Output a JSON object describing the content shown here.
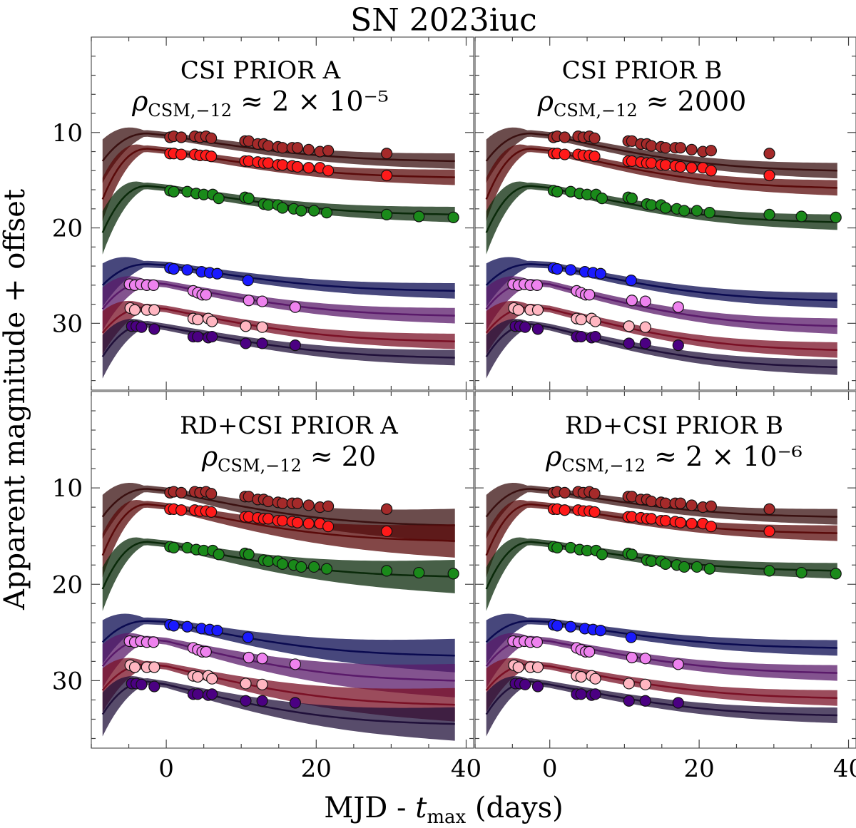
{
  "figure": {
    "title": "SN 2023iuc",
    "xlabel": "MJD - t_max (days)",
    "xlabel_parts": {
      "main": "MJD - ",
      "italic": "t",
      "sub": "max",
      "tail": " (days)"
    },
    "ylabel": "Apparent magnitude + offset"
  },
  "chart_data": [
    {
      "type": "line",
      "panel": "top-left",
      "label": "CSI PRIOR A",
      "rho_prefix": "ρ",
      "rho_sub": "CSM,−12",
      "rho_value": "≈ 2 × 10⁻⁵",
      "xlim": [
        -10,
        41
      ],
      "ylim": [
        37,
        0
      ],
      "xticks": [
        0,
        20,
        40
      ],
      "yticks": [
        10,
        20,
        30
      ],
      "tail": [
        13.0,
        14.7,
        18.6,
        26.6,
        29.2,
        31.9,
        33.6
      ]
    },
    {
      "type": "line",
      "panel": "top-right",
      "label": "CSI PRIOR B",
      "rho_prefix": "ρ",
      "rho_sub": "CSM,−12",
      "rho_value": "≈ 2000",
      "xlim": [
        -10,
        41
      ],
      "ylim": [
        37,
        0
      ],
      "xticks": [
        0,
        20,
        40
      ],
      "yticks": [
        10,
        20,
        30
      ],
      "tail": [
        14.0,
        15.8,
        19.4,
        27.6,
        30.3,
        32.8,
        34.6
      ]
    },
    {
      "type": "line",
      "panel": "bottom-left",
      "label": "RD+CSI PRIOR A",
      "rho_prefix": "ρ",
      "rho_sub": "CSM,−12",
      "rho_value": "≈ 20",
      "xlim": [
        -10,
        41
      ],
      "ylim": [
        37,
        0
      ],
      "xticks": [
        0,
        20,
        40
      ],
      "yticks": [
        10,
        20,
        30
      ],
      "tail": [
        13.9,
        15.5,
        19.2,
        27.4,
        30.0,
        32.5,
        34.5
      ]
    },
    {
      "type": "line",
      "panel": "bottom-right",
      "label": "RD+CSI PRIOR B",
      "rho_prefix": "ρ",
      "rho_sub": "CSM,−12",
      "rho_value": "≈ 2 × 10⁻⁶",
      "xlim": [
        -10,
        41
      ],
      "ylim": [
        37,
        0
      ],
      "xticks": [
        0,
        20,
        40
      ],
      "yticks": [
        10,
        20,
        30
      ],
      "tail": [
        13.0,
        14.7,
        18.6,
        26.6,
        29.2,
        31.8,
        33.6
      ]
    }
  ],
  "bands": [
    {
      "name": "band-1",
      "color": "#a52a2a",
      "line": "#3a1010",
      "start": 13.0,
      "peak": 10.1,
      "at0": 10.3,
      "points": [
        [
          0.5,
          10.5
        ],
        [
          1.0,
          10.4
        ],
        [
          2.0,
          10.5
        ],
        [
          3.8,
          10.4
        ],
        [
          4.5,
          10.5
        ],
        [
          5.3,
          10.4
        ],
        [
          6.0,
          10.6
        ],
        [
          10.5,
          10.9
        ],
        [
          11.0,
          10.9
        ],
        [
          12.2,
          11.2
        ],
        [
          13.0,
          11.2
        ],
        [
          13.6,
          11.4
        ],
        [
          14.9,
          11.5
        ],
        [
          15.5,
          11.6
        ],
        [
          16.8,
          11.6
        ],
        [
          17.5,
          11.6
        ],
        [
          19.0,
          11.8
        ],
        [
          20.5,
          12.0
        ],
        [
          21.6,
          11.9
        ],
        [
          29.4,
          12.2
        ]
      ]
    },
    {
      "name": "band-2",
      "color": "#ff1a1a",
      "line": "#5a0a0a",
      "start": 17.0,
      "peak": 11.7,
      "at0": 11.9,
      "points": [
        [
          0.5,
          12.2
        ],
        [
          1.0,
          12.2
        ],
        [
          2.0,
          12.3
        ],
        [
          3.8,
          12.3
        ],
        [
          4.5,
          12.4
        ],
        [
          5.3,
          12.4
        ],
        [
          6.0,
          12.5
        ],
        [
          10.5,
          13.0
        ],
        [
          11.0,
          13.0
        ],
        [
          12.2,
          13.1
        ],
        [
          13.0,
          13.2
        ],
        [
          13.6,
          13.2
        ],
        [
          14.9,
          13.4
        ],
        [
          15.5,
          13.4
        ],
        [
          16.8,
          13.5
        ],
        [
          17.5,
          13.6
        ],
        [
          19.0,
          13.7
        ],
        [
          20.5,
          13.7
        ],
        [
          21.6,
          14.0
        ],
        [
          29.4,
          14.5
        ]
      ]
    },
    {
      "name": "band-3",
      "color": "#1a8a1a",
      "line": "#0a2a0a",
      "start": 20.5,
      "peak": 15.6,
      "at0": 15.8,
      "points": [
        [
          0.5,
          16.1
        ],
        [
          1.0,
          16.2
        ],
        [
          2.8,
          16.2
        ],
        [
          4.0,
          16.4
        ],
        [
          5.0,
          16.5
        ],
        [
          6.2,
          16.5
        ],
        [
          7.0,
          16.9
        ],
        [
          10.5,
          16.8
        ],
        [
          11.0,
          16.9
        ],
        [
          13.0,
          17.5
        ],
        [
          13.6,
          17.6
        ],
        [
          14.9,
          17.6
        ],
        [
          15.5,
          17.9
        ],
        [
          17.0,
          18.0
        ],
        [
          18.0,
          18.2
        ],
        [
          19.7,
          18.2
        ],
        [
          21.4,
          18.4
        ],
        [
          29.4,
          18.6
        ],
        [
          33.7,
          18.8
        ],
        [
          38.3,
          18.9
        ]
      ]
    },
    {
      "name": "band-4",
      "color": "#1a1aff",
      "line": "#0a0a50",
      "start": 26.0,
      "peak": 23.8,
      "at0": 23.9,
      "points": [
        [
          0.5,
          24.2
        ],
        [
          1.0,
          24.3
        ],
        [
          2.8,
          24.4
        ],
        [
          4.7,
          24.6
        ],
        [
          5.8,
          24.7
        ],
        [
          6.8,
          24.8
        ],
        [
          10.9,
          25.5
        ]
      ]
    },
    {
      "name": "band-5",
      "color": "#ee82ee",
      "line": "#5a1a6a",
      "start": 28.5,
      "peak": 25.7,
      "at0": 25.9,
      "points": [
        [
          -4.9,
          25.9
        ],
        [
          -4.2,
          26.0
        ],
        [
          -3.4,
          25.9
        ],
        [
          -2.6,
          26.0
        ],
        [
          -1.7,
          26.0
        ],
        [
          3.6,
          26.6
        ],
        [
          4.2,
          26.8
        ],
        [
          4.8,
          27.0
        ],
        [
          5.3,
          27.0
        ],
        [
          11.0,
          27.6
        ],
        [
          12.8,
          27.7
        ],
        [
          17.2,
          28.3
        ]
      ]
    },
    {
      "name": "band-6",
      "color": "#ffb6c1",
      "line": "#7a1025",
      "start": 31.0,
      "peak": 28.3,
      "at0": 28.5,
      "points": [
        [
          -4.8,
          28.4
        ],
        [
          -4.2,
          28.6
        ],
        [
          -2.6,
          28.6
        ],
        [
          -1.6,
          28.6
        ],
        [
          3.6,
          29.5
        ],
        [
          4.2,
          29.6
        ],
        [
          5.6,
          29.5
        ],
        [
          6.1,
          29.8
        ],
        [
          10.6,
          30.3
        ],
        [
          12.8,
          30.4
        ]
      ]
    },
    {
      "name": "band-7",
      "color": "#4b0082",
      "line": "#20103a",
      "start": 33.5,
      "peak": 30.1,
      "at0": 30.4,
      "points": [
        [
          -4.6,
          30.3
        ],
        [
          -4.0,
          30.3
        ],
        [
          -3.3,
          30.4
        ],
        [
          -1.6,
          30.6
        ],
        [
          3.6,
          31.4
        ],
        [
          4.2,
          31.4
        ],
        [
          5.6,
          31.5
        ],
        [
          6.1,
          31.4
        ],
        [
          10.6,
          32.1
        ],
        [
          12.8,
          32.1
        ],
        [
          17.2,
          32.3
        ]
      ]
    }
  ]
}
